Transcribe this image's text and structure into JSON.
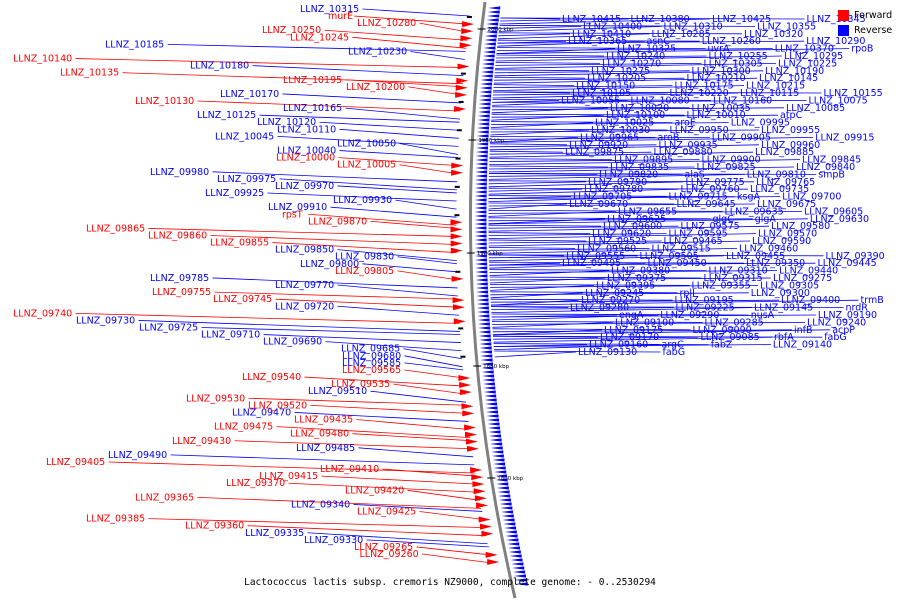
{
  "caption": "Lactococcus lactis subsp. cremoris NZ9000, complete genome: - 0..2530294",
  "legend": [
    {
      "label": "Forward",
      "color": "#ff0000"
    },
    {
      "label": "Reverse",
      "color": "#0000ff"
    }
  ],
  "colors": {
    "forward": "#ff0000",
    "reverse": "#0000ff",
    "backbone": "#808080"
  },
  "ticks": [
    "2000 kbp",
    "1950 kbp",
    "1900 kbp",
    "1850 kbp",
    "1800 kbp"
  ],
  "left_labels": [
    {
      "t": "LLNZ_10315",
      "s": "R"
    },
    {
      "t": "murE",
      "s": "F"
    },
    {
      "t": "LLNZ_10280",
      "s": "F"
    },
    {
      "t": "LLNZ_10250",
      "s": "F"
    },
    {
      "t": "LLNZ_10245",
      "s": "F"
    },
    {
      "t": "LLNZ_10185",
      "s": "R"
    },
    {
      "t": "LLNZ_10230",
      "s": "R"
    },
    {
      "t": "LLNZ_10140",
      "s": "F"
    },
    {
      "t": "LLNZ_10180",
      "s": "R"
    },
    {
      "t": "LLNZ_10135",
      "s": "F"
    },
    {
      "t": "LLNZ_10195",
      "s": "F"
    },
    {
      "t": "LLNZ_10200",
      "s": "F"
    },
    {
      "t": "LLNZ_10170",
      "s": "R"
    },
    {
      "t": "LLNZ_10130",
      "s": "F"
    },
    {
      "t": "LLNZ_10165",
      "s": "R"
    },
    {
      "t": "LLNZ_10125",
      "s": "R"
    },
    {
      "t": "LLNZ_10120",
      "s": "R"
    },
    {
      "t": "LLNZ_10110",
      "s": "R"
    },
    {
      "t": "LLNZ_10045",
      "s": "R"
    },
    {
      "t": "LLNZ_10050",
      "s": "R"
    },
    {
      "t": "LLNZ_10040",
      "s": "R"
    },
    {
      "t": "LLNZ_10000",
      "s": "F"
    },
    {
      "t": "LLNZ_10005",
      "s": "F"
    },
    {
      "t": "LLNZ_09980",
      "s": "R"
    },
    {
      "t": "LLNZ_09975",
      "s": "R"
    },
    {
      "t": "LLNZ_09970",
      "s": "R"
    },
    {
      "t": "LLNZ_09925",
      "s": "R"
    },
    {
      "t": "LLNZ_09930",
      "s": "R"
    },
    {
      "t": "LLNZ_09910",
      "s": "R"
    },
    {
      "t": "rpsT",
      "s": "F"
    },
    {
      "t": "LLNZ_09870",
      "s": "F"
    },
    {
      "t": "LLNZ_09865",
      "s": "F"
    },
    {
      "t": "LLNZ_09860",
      "s": "F"
    },
    {
      "t": "LLNZ_09855",
      "s": "F"
    },
    {
      "t": "LLNZ_09850",
      "s": "R"
    },
    {
      "t": "LLNZ_09830",
      "s": "R"
    },
    {
      "t": "LLNZ_09800",
      "s": "R"
    },
    {
      "t": "LLNZ_09805",
      "s": "F"
    },
    {
      "t": "LLNZ_09785",
      "s": "R"
    },
    {
      "t": "LLNZ_09770",
      "s": "R"
    },
    {
      "t": "LLNZ_09755",
      "s": "F"
    },
    {
      "t": "LLNZ_09745",
      "s": "F"
    },
    {
      "t": "LLNZ_09720",
      "s": "R"
    },
    {
      "t": "LLNZ_09740",
      "s": "F"
    },
    {
      "t": "LLNZ_09730",
      "s": "R"
    },
    {
      "t": "LLNZ_09725",
      "s": "R"
    },
    {
      "t": "LLNZ_09710",
      "s": "R"
    },
    {
      "t": "LLNZ_09690",
      "s": "R"
    },
    {
      "t": "LLNZ_09685",
      "s": "R"
    },
    {
      "t": "LLNZ_09680",
      "s": "R"
    },
    {
      "t": "LLNZ_09585",
      "s": "R"
    },
    {
      "t": "LLNZ_09565",
      "s": "F"
    },
    {
      "t": "LLNZ_09540",
      "s": "F"
    },
    {
      "t": "LLNZ_09535",
      "s": "F"
    },
    {
      "t": "LLNZ_09510",
      "s": "R"
    },
    {
      "t": "LLNZ_09530",
      "s": "F"
    },
    {
      "t": "LLNZ_09520",
      "s": "F"
    },
    {
      "t": "LLNZ_09470",
      "s": "R"
    },
    {
      "t": "LLNZ_09435",
      "s": "F"
    },
    {
      "t": "LLNZ_09475",
      "s": "F"
    },
    {
      "t": "LLNZ_09480",
      "s": "F"
    },
    {
      "t": "LLNZ_09430",
      "s": "F"
    },
    {
      "t": "LLNZ_09485",
      "s": "R"
    },
    {
      "t": "LLNZ_09490",
      "s": "R"
    },
    {
      "t": "LLNZ_09405",
      "s": "F"
    },
    {
      "t": "LLNZ_09410",
      "s": "F"
    },
    {
      "t": "LLNZ_09415",
      "s": "F"
    },
    {
      "t": "LLNZ_09370",
      "s": "F"
    },
    {
      "t": "LLNZ_09420",
      "s": "F"
    },
    {
      "t": "LLNZ_09365",
      "s": "F"
    },
    {
      "t": "LLNZ_09340",
      "s": "R"
    },
    {
      "t": "LLNZ_09425",
      "s": "F"
    },
    {
      "t": "LLNZ_09385",
      "s": "F"
    },
    {
      "t": "LLNZ_09360",
      "s": "F"
    },
    {
      "t": "LLNZ_09335",
      "s": "R"
    },
    {
      "t": "LLNZ_09330",
      "s": "R"
    },
    {
      "t": "LLNZ_09265",
      "s": "F"
    },
    {
      "t": "LLNZ_09260",
      "s": "F"
    }
  ],
  "right_labels": [
    "LLNZ_10415",
    "LLNZ_10380",
    "LLNZ_10425",
    "LLNZ_10345",
    "LLNZ_10400",
    "LLNZ_10310",
    "LLNZ_10355",
    "LLNZ_10410",
    "LLNZ_10285",
    "LLNZ_10320",
    "LLNZ_10365",
    "asnC",
    "LLNZ_10260",
    "LLNZ_10290",
    "LLNZ_10325",
    "uvrA",
    "LLNZ_10370",
    "rpoB",
    "LLNZ_10240",
    "LLNZ_10255",
    "LLNZ_10295",
    "LLNZ_10270",
    "LLNZ_10305",
    "LLNZ_10225",
    "LLNZ_10275",
    "LLNZ_10300",
    "LLNZ_10190",
    "LLNZ_10205",
    "LLNZ_10210",
    "LLNZ_10145",
    "LLNZ_10150",
    "LLNZ_10175",
    "LLNZ_10215",
    "LLNZ_10105",
    "LLNZ_10220",
    "LLNZ_10115",
    "LLNZ_10155",
    "LLNZ_10055",
    "LLNZ_10080",
    "LLNZ_10160",
    "LLNZ_10075",
    "LLNZ_10020",
    "LLNZ_10035",
    "LLNZ_10085",
    "LLNZ_10100",
    "LLNZ_10010",
    "atpC",
    "LLNZ_10025",
    "aroE",
    "LLNZ_09995",
    "LLNZ_10030",
    "LLNZ_09950",
    "LLNZ_09955",
    "LLNZ_09965",
    "aroB",
    "LLNZ_09905",
    "LLNZ_09915",
    "LLNZ_09920",
    "LLNZ_09935",
    "LLNZ_09960",
    "LLNZ_09875",
    "LLNZ_09880",
    "LLNZ_09885",
    "LLNZ_09895",
    "LLNZ_09900",
    "LLNZ_09845",
    "LLNZ_09835",
    "LLNZ_09825",
    "LLNZ_09840",
    "LLNZ_09820",
    "alaS",
    "LLNZ_09810",
    "smpB",
    "LLNZ_09790",
    "LLNZ_09775",
    "LLNZ_09765",
    "LLNZ_09780",
    "LLNZ_09760",
    "LLNZ_09735",
    "LLNZ_09705",
    "LLNZ_09715",
    "ksgA",
    "LLNZ_09700",
    "LLNZ_09670",
    "LLNZ_09645",
    "LLNZ_09675",
    "LLNZ_09655",
    "LLNZ_09635",
    "LLNZ_09605",
    "LLNZ_09625",
    "glgC",
    "glgA",
    "LLNZ_09630",
    "LLNZ_09600",
    "LLNZ_09575",
    "LLNZ_09580",
    "LLNZ_09620",
    "LLNZ_09595",
    "LLNZ_09570",
    "LLNZ_09525",
    "LLNZ_09465",
    "LLNZ_09590",
    "LLNZ_09560",
    "LLNZ_09515",
    "LLNZ_09460",
    "LLNZ_09555",
    "LLNZ_09505",
    "LLNZ_09455",
    "LLNZ_09390",
    "LLNZ_09495",
    "LLNZ_09450",
    "LLNZ_09350",
    "LLNZ_09445",
    "LLNZ_09380",
    "LLNZ_09310",
    "LLNZ_09440",
    "LLNZ_09375",
    "LLNZ_09315",
    "LLNZ_09275",
    "LLNZ_09395",
    "LLNZ_09355",
    "LLNZ_09305",
    "LLNZ_09245",
    "rplI",
    "LLNZ_09300",
    "LLNZ_09270",
    "LLNZ_09195",
    "LLNZ_09400",
    "trmB",
    "LLNZ_09280",
    "LLNZ_09225",
    "LLNZ_09145",
    "nrdR",
    "engA",
    "LLNZ_09290",
    "nusA",
    "LLNZ_09190",
    "LLNZ_09100",
    "LLNZ_09285",
    "LLNZ_09240",
    "LLNZ_09175",
    "LLNZ_09090",
    "infB",
    "acpP",
    "LLNZ_09170",
    "LLNZ_09085",
    "rbfA",
    "fabG",
    "LLNZ_09160",
    "argC",
    "fabZ",
    "LLNZ_09140",
    "LLNZ_09130",
    "fabG"
  ]
}
